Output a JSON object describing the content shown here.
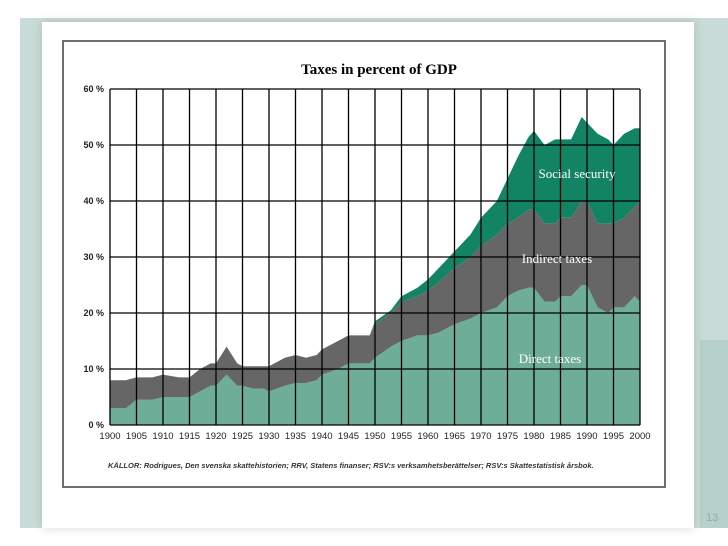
{
  "slide": {
    "page_number": "13"
  },
  "colors": {
    "direct": "#6eae98",
    "indirect": "#666666",
    "social": "#138463",
    "frame": "#6e6e6e",
    "band": "#c9dcd7"
  },
  "chart_data": {
    "type": "area",
    "stacked": true,
    "title": "Taxes in percent of GDP",
    "source_note": "KÄLLOR: Rodrigues, Den svenska skattehistorien; RRV, Statens finanser; RSV:s verksamhetsberättelser; RSV:s Skattestatistisk årsbok.",
    "xlabel": "",
    "ylabel": "",
    "xlim": [
      1900,
      2000
    ],
    "ylim": [
      0,
      60
    ],
    "grid": true,
    "y_ticks": [
      "0 %",
      "10 %",
      "20 %",
      "30 %",
      "40 %",
      "50 %",
      "60 %"
    ],
    "x_ticks": [
      "1900",
      "1905",
      "1910",
      "1915",
      "1920",
      "1925",
      "1930",
      "1935",
      "1940",
      "1945",
      "1950",
      "1955",
      "1960",
      "1965",
      "1970",
      "1975",
      "1980",
      "1985",
      "1990",
      "1995",
      "2000"
    ],
    "x": [
      1900,
      1903,
      1905,
      1908,
      1910,
      1913,
      1915,
      1917,
      1919,
      1920,
      1922,
      1924,
      1925,
      1927,
      1929,
      1930,
      1933,
      1935,
      1937,
      1939,
      1940,
      1943,
      1945,
      1947,
      1949,
      1950,
      1953,
      1955,
      1958,
      1960,
      1962,
      1965,
      1968,
      1970,
      1973,
      1975,
      1977,
      1979,
      1980,
      1982,
      1984,
      1985,
      1987,
      1989,
      1990,
      1992,
      1994,
      1995,
      1997,
      1999,
      2000
    ],
    "series": [
      {
        "name": "Direct taxes",
        "values": [
          3,
          3,
          4.5,
          4.5,
          5,
          5,
          5,
          6,
          7,
          7,
          9,
          7,
          7,
          6.5,
          6.5,
          6,
          7,
          7.5,
          7.5,
          8,
          9,
          10,
          11,
          11,
          11,
          12,
          14,
          15,
          16,
          16,
          16.5,
          18,
          19,
          20,
          21,
          23,
          24,
          24.5,
          24.5,
          22,
          22,
          23,
          23,
          25,
          25,
          21,
          20,
          21,
          21,
          23,
          22
        ]
      },
      {
        "name": "Indirect taxes",
        "values": [
          5,
          5,
          4,
          4,
          4,
          3.5,
          3.5,
          4,
          4,
          4,
          5,
          4,
          3.5,
          4,
          4,
          4.5,
          5,
          5,
          4.5,
          4.5,
          4.5,
          5,
          5,
          5,
          5,
          6,
          6,
          7,
          7,
          8,
          9,
          10,
          11,
          12,
          13,
          13,
          13,
          14,
          14,
          14,
          14,
          14,
          14,
          15,
          15,
          15,
          16,
          15,
          16,
          16,
          18
        ]
      },
      {
        "name": "Social security",
        "values": [
          0,
          0,
          0,
          0,
          0,
          0,
          0,
          0,
          0,
          0,
          0,
          0,
          0,
          0,
          0,
          0,
          0,
          0,
          0,
          0,
          0,
          0,
          0,
          0,
          0,
          0.5,
          0.5,
          1,
          1.5,
          2,
          2.5,
          3,
          4,
          5,
          6,
          8,
          11,
          13,
          14,
          14,
          15,
          14,
          14,
          15,
          14,
          16,
          15,
          14,
          15,
          14,
          13
        ]
      }
    ],
    "annotations": [
      "Social security",
      "Indirect taxes",
      "Direct taxes"
    ]
  }
}
